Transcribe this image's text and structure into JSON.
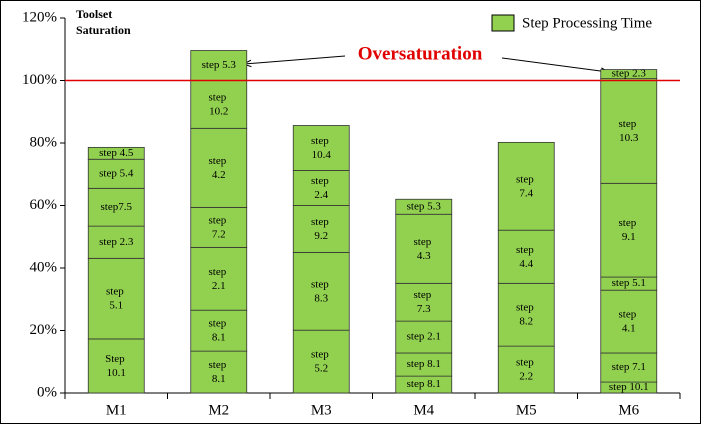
{
  "chart_data": {
    "type": "stacked_bar",
    "title": "Toolset Saturation",
    "annotation": "Oversaturation",
    "legend": "Step Processing Time",
    "color": "#92d050",
    "threshold": 100,
    "threshold_color": "#e00000",
    "ylim": [
      0,
      120
    ],
    "yticks": [
      {
        "value": 0,
        "label": "0%"
      },
      {
        "value": 20,
        "label": "20%"
      },
      {
        "value": 40,
        "label": "40%"
      },
      {
        "value": 60,
        "label": "60%"
      },
      {
        "value": 80,
        "label": "80%"
      },
      {
        "value": 100,
        "label": "100%"
      },
      {
        "value": 120,
        "label": "120%"
      }
    ],
    "categories": [
      "M1",
      "M2",
      "M3",
      "M4",
      "M5",
      "M6"
    ],
    "stacks": [
      {
        "labels": [
          "Step 10.1",
          "step 5.1",
          "step 2.3",
          "step7.5",
          "step 5.4",
          "step 4.5"
        ],
        "values": [
          17.3,
          25.8,
          10.3,
          12.1,
          9.3,
          3.8
        ]
      },
      {
        "labels": [
          "step 8.1",
          "step 8.1",
          "step 2.1",
          "step 7.2",
          "step 4.2",
          "step 10.2",
          "step 5.3"
        ],
        "values": [
          13.4,
          13.1,
          20.1,
          12.8,
          25.3,
          15.3,
          9.6
        ]
      },
      {
        "labels": [
          "step 5.2",
          "step 8.3",
          "step 9.2",
          "step 2.4",
          "step 10.4"
        ],
        "values": [
          20.1,
          24.9,
          15,
          11.2,
          14.4
        ]
      },
      {
        "labels": [
          "step 8.1",
          "step 8.1",
          "step 2.1",
          "step 7.3",
          "step 4.3",
          "step 5.3"
        ],
        "values": [
          5.4,
          7.4,
          10.2,
          12.1,
          22.1,
          4.8
        ]
      },
      {
        "labels": [
          "step 2.2",
          "step 8.2",
          "step 4.4",
          "step 7.4"
        ],
        "values": [
          15,
          20.1,
          17,
          28.1
        ]
      },
      {
        "labels": [
          "step 10.1",
          "step 7.1",
          "step 4.1",
          "step 5.1",
          "step 9.1",
          "step 10.3",
          "step 2.3"
        ],
        "values": [
          3.5,
          9.3,
          20.1,
          4.2,
          30,
          33.5,
          2.9
        ]
      }
    ]
  }
}
